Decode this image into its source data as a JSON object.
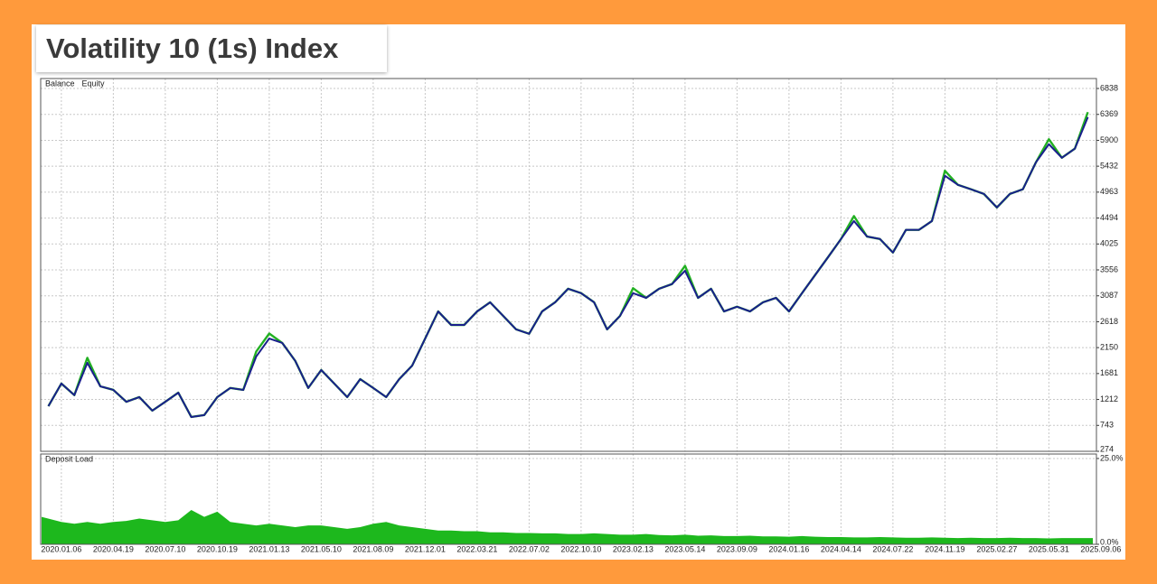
{
  "chart_data": [
    {
      "type": "line",
      "title": "Volatility 10 (1s) Index",
      "series": [
        {
          "name": "Balance",
          "color": "#1a1f8c",
          "values": [
            1090,
            1500,
            1290,
            1875,
            1450,
            1385,
            1170,
            1255,
            1010,
            1170,
            1335,
            895,
            930,
            1255,
            1420,
            1385,
            1990,
            2315,
            2235,
            1910,
            1420,
            1745,
            1500,
            1255,
            1580,
            1420,
            1255,
            1580,
            1825,
            2315,
            2805,
            2560,
            2560,
            2805,
            2970,
            2725,
            2480,
            2400,
            2805,
            2970,
            3215,
            3135,
            2970,
            2480,
            2725,
            3135,
            3050,
            3215,
            3300,
            3540,
            3050,
            3215,
            2805,
            2890,
            2805,
            2970,
            3050,
            2805,
            3135,
            3460,
            3785,
            4115,
            4440,
            4160,
            4115,
            3870,
            4280,
            4280,
            4440,
            5260,
            5095,
            5015,
            4930,
            4685,
            4930,
            5015,
            5500,
            5830,
            5585,
            5750,
            6320,
            null
          ]
        },
        {
          "name": "Equity",
          "color": "#22b022",
          "values": [
            1090,
            1500,
            1290,
            1965,
            1450,
            1385,
            1170,
            1255,
            1010,
            1170,
            1335,
            895,
            930,
            1255,
            1420,
            1385,
            2080,
            2405,
            2235,
            1910,
            1420,
            1745,
            1500,
            1255,
            1580,
            1420,
            1255,
            1580,
            1825,
            2315,
            2805,
            2560,
            2560,
            2805,
            2970,
            2725,
            2480,
            2400,
            2805,
            2970,
            3215,
            3135,
            2970,
            2480,
            2725,
            3225,
            3050,
            3215,
            3300,
            3630,
            3050,
            3215,
            2805,
            2890,
            2805,
            2970,
            3050,
            2805,
            3135,
            3460,
            3785,
            4115,
            4530,
            4160,
            4115,
            3870,
            4280,
            4280,
            4440,
            5350,
            5095,
            5015,
            4930,
            4685,
            4930,
            5015,
            5500,
            5920,
            5585,
            5750,
            6410,
            null
          ]
        }
      ],
      "ylim": [
        274,
        7018
      ],
      "yticks": [
        274,
        743,
        1212,
        1681,
        2150,
        2618,
        3087,
        3556,
        4025,
        4494,
        4963,
        5432,
        5900,
        6369,
        6838
      ],
      "grid": true
    },
    {
      "type": "area",
      "title": "Deposit Load",
      "color": "#1db81d",
      "categories": [
        null,
        "2020.01.06",
        null,
        null,
        null,
        "2020.04.19",
        null,
        null,
        null,
        "2020.07.10",
        null,
        null,
        null,
        "2020.10.19",
        null,
        null,
        null,
        "2021.01.13",
        null,
        null,
        null,
        "2021.05.10",
        null,
        null,
        null,
        "2021.08.09",
        null,
        null,
        null,
        "2021.12.01",
        null,
        null,
        null,
        "2022.03.21",
        null,
        null,
        null,
        "2022.07.02",
        null,
        null,
        null,
        "2022.10.10",
        null,
        null,
        null,
        "2023.02.13",
        null,
        null,
        null,
        "2023.05.14",
        null,
        null,
        null,
        "2023.09.09",
        null,
        null,
        null,
        "2024.01.16",
        null,
        null,
        null,
        "2024.04.14",
        null,
        null,
        null,
        "2024.07.22",
        null,
        null,
        null,
        "2024.11.19",
        null,
        null,
        null,
        "2025.02.27",
        null,
        null,
        null,
        "2025.05.31",
        null,
        null,
        null,
        "2025.09.06"
      ],
      "values": [
        8,
        6.5,
        6,
        6.5,
        6,
        6.5,
        6.8,
        7.5,
        7,
        6.5,
        7,
        10,
        8,
        9.5,
        6.5,
        6,
        5.5,
        6,
        5.5,
        5,
        5.5,
        5.5,
        5,
        4.5,
        5,
        6,
        6.5,
        5.5,
        5,
        4.5,
        4,
        4,
        3.8,
        3.8,
        3.5,
        3.5,
        3.3,
        3.3,
        3.2,
        3.2,
        3,
        3,
        3.2,
        3,
        2.8,
        2.8,
        3,
        2.7,
        2.6,
        2.8,
        2.5,
        2.6,
        2.4,
        2.4,
        2.5,
        2.3,
        2.3,
        2.2,
        2.4,
        2.2,
        2.1,
        2.1,
        2,
        2,
        2.1,
        2,
        1.9,
        1.9,
        2,
        1.9,
        1.8,
        1.9,
        1.8,
        1.8,
        1.9,
        1.8,
        1.8,
        1.7,
        1.8,
        1.8,
        1.8,
        null
      ],
      "ylim": [
        0,
        26.3
      ],
      "yticks": [
        {
          "value": 0,
          "label": "0.0%"
        },
        {
          "value": 25,
          "label": "25.0%"
        }
      ],
      "grid": true
    }
  ]
}
